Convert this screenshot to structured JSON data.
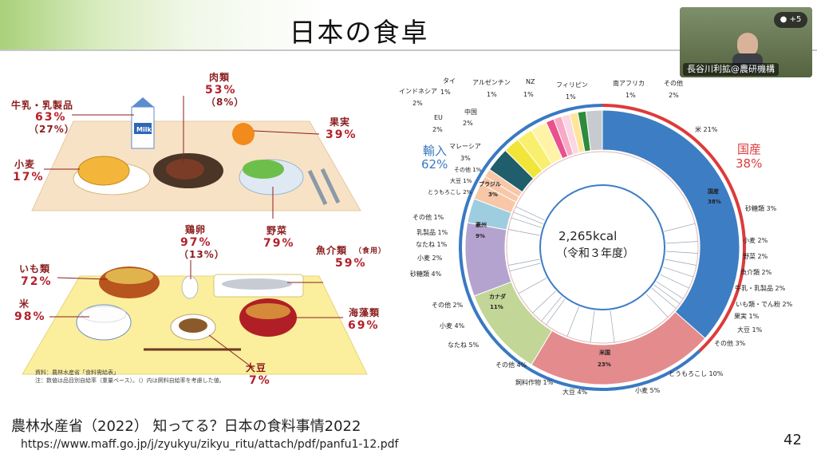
{
  "slide": {
    "title": "日本の食卓",
    "citation": "農林水産省（2022） 知ってる？日本の食料事情2022",
    "url": "https://www.maff.go.jp/j/zyukyu/zikyu_ritu/attach/pdf/panfu1-12.pdf",
    "page_number": "42"
  },
  "video": {
    "participant_name": "長谷川利拡@農研機構",
    "participants_badge": "+5"
  },
  "illustration": {
    "items": [
      {
        "name": "牛乳・乳製品",
        "value": "63%",
        "sub": "（27%）"
      },
      {
        "name": "肉類",
        "value": "53%",
        "sub": "（8%）"
      },
      {
        "name": "果実",
        "value": "39%"
      },
      {
        "name": "小麦",
        "value": "17%"
      },
      {
        "name": "野菜",
        "value": "79%"
      },
      {
        "name": "鶏卵",
        "value": "97%",
        "sub": "（13%）"
      },
      {
        "name": "魚介類",
        "value": "59%",
        "note": "（食用）"
      },
      {
        "name": "いも類",
        "value": "72%"
      },
      {
        "name": "米",
        "value": "98%"
      },
      {
        "name": "海藻類",
        "value": "69%"
      },
      {
        "name": "大豆",
        "value": "7%"
      }
    ],
    "milk_carton_text": "Milk",
    "source_note": "資料：農林水産省「食料需給表」",
    "footnote": "注：数値は品目別自給率（重量ベース）。（）内は飼料自給率を考慮した値。"
  },
  "chart_data": {
    "type": "pie",
    "center_value": "2,265kcal",
    "center_sub": "（令和３年度）",
    "outer_ring": [
      {
        "label": "国産",
        "value": 38,
        "color": "#dd3b3b"
      },
      {
        "label": "輸入",
        "value": 62,
        "color": "#3a79c2"
      }
    ],
    "middle_ring": [
      {
        "label": "国産",
        "value": 38,
        "color": "#3d7dc4"
      },
      {
        "label": "米国",
        "value": 23,
        "color": "#e38b8d"
      },
      {
        "label": "カナダ",
        "value": 11,
        "color": "#c2d697"
      },
      {
        "label": "豪州",
        "value": 9,
        "color": "#b5a3cf"
      },
      {
        "label": "ブラジル",
        "value": 3,
        "color": "#9ecde0"
      },
      {
        "label": "とうもろこし2%",
        "value": 2,
        "color": "#f7c7a7"
      },
      {
        "label": "大豆1%",
        "value": 1,
        "color": "#f7c7a7"
      },
      {
        "label": "その他1%",
        "value": 1,
        "color": "#f7c7a7"
      },
      {
        "label": "マレーシア",
        "value": 3,
        "color": "#1f5e6a"
      },
      {
        "label": "EU",
        "value": 2,
        "color": "#f1e53a"
      },
      {
        "label": "中国",
        "value": 2,
        "color": "#f9ef6e"
      },
      {
        "label": "インドネシア",
        "value": 2,
        "color": "#fff3a8"
      },
      {
        "label": "タイ",
        "value": 1,
        "color": "#e9508e"
      },
      {
        "label": "アルゼンチン",
        "value": 1,
        "color": "#f8a9c5"
      },
      {
        "label": "NZ",
        "value": 1,
        "color": "#fbd6e3"
      },
      {
        "label": "フィリピン",
        "value": 1,
        "color": "#ffe59a"
      },
      {
        "label": "南アフリカ",
        "value": 1,
        "color": "#2e8b3c"
      },
      {
        "label": "その他",
        "value": 2,
        "color": "#c7cbcf"
      }
    ],
    "top_labels": [
      {
        "name": "インドネシア",
        "value": "2%"
      },
      {
        "name": "タイ",
        "value": "1%"
      },
      {
        "name": "アルゼンチン",
        "value": "1%"
      },
      {
        "name": "NZ",
        "value": "1%"
      },
      {
        "name": "フィリピン",
        "value": "1%"
      },
      {
        "name": "南アフリカ",
        "value": "1%"
      },
      {
        "name": "その他",
        "value": "2%"
      },
      {
        "name": "中国",
        "value": "2%"
      },
      {
        "name": "EU",
        "value": "2%"
      },
      {
        "name": "マレーシア",
        "value": "3%"
      }
    ],
    "domestic_breakdown": [
      "米 21%",
      "砂糖類 3%",
      "小麦 2%",
      "野菜 2%",
      "魚介類 2%",
      "牛乳・乳製品 2%",
      "いも類・でん粉 2%",
      "果実 1%",
      "大豆 1%",
      "その他 3%"
    ],
    "us_breakdown": [
      "とうもろこし 10%",
      "小麦 5%",
      "大豆 4%",
      "飼料作物 1%",
      "その他 4%"
    ],
    "canada_breakdown": [
      "なたね 5%",
      "小麦 4%",
      "その他 2%"
    ],
    "australia_breakdown": [
      "砂糖類 4%",
      "小麦 2%",
      "なたね 1%",
      "乳製品 1%",
      "その他 1%"
    ],
    "segment_labels": {
      "domestic": "国産",
      "domestic_value": "38%",
      "us": "米国",
      "us_value": "23%",
      "canada": "カナダ",
      "canada_value": "11%",
      "australia": "豪州",
      "australia_value": "9%",
      "brazil": "ブラジル",
      "brazil_value": "3%",
      "malaysia_inner": "その他 1%",
      "misc1": "大豆 1%",
      "misc2": "とうもろこし 2%"
    },
    "import_label": "輸入",
    "import_value": "62%",
    "domestic_label": "国産",
    "domestic_value_label": "38%",
    "colors": {
      "domestic": "#dd3b3b",
      "import": "#3a79c2"
    }
  }
}
